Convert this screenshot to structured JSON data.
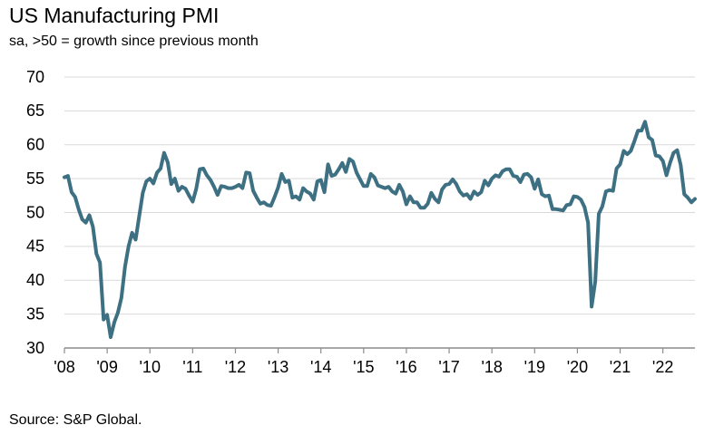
{
  "title": "US Manufacturing PMI",
  "subtitle": "sa, >50 = growth since previous month",
  "source": "Source: S&P Global.",
  "colors": {
    "line": "#3e7083",
    "grid": "#d9d9d9",
    "axis": "#8c8c8c"
  },
  "chart_data": {
    "type": "line",
    "title": "US Manufacturing PMI",
    "subtitle": "sa, >50 = growth since previous month",
    "ylim": [
      30,
      70
    ],
    "yticks": [
      30,
      35,
      40,
      45,
      50,
      55,
      60,
      65,
      70
    ],
    "xlim": [
      2008.0,
      2022.75
    ],
    "xticks": [
      {
        "label": "'08",
        "x": 2008
      },
      {
        "label": "'09",
        "x": 2009
      },
      {
        "label": "'10",
        "x": 2010
      },
      {
        "label": "'11",
        "x": 2011
      },
      {
        "label": "'12",
        "x": 2012
      },
      {
        "label": "'13",
        "x": 2013
      },
      {
        "label": "'14",
        "x": 2014
      },
      {
        "label": "'15",
        "x": 2015
      },
      {
        "label": "'16",
        "x": 2016
      },
      {
        "label": "'17",
        "x": 2017
      },
      {
        "label": "'18",
        "x": 2018
      },
      {
        "label": "'19",
        "x": 2019
      },
      {
        "label": "'20",
        "x": 2020
      },
      {
        "label": "'21",
        "x": 2021
      },
      {
        "label": "'22",
        "x": 2022
      }
    ],
    "grid": true,
    "series": [
      {
        "points": [
          [
            2008.0,
            55.2
          ],
          [
            2008.083,
            55.4
          ],
          [
            2008.167,
            53.0
          ],
          [
            2008.25,
            52.3
          ],
          [
            2008.333,
            50.5
          ],
          [
            2008.417,
            49.0
          ],
          [
            2008.5,
            48.5
          ],
          [
            2008.583,
            49.6
          ],
          [
            2008.667,
            47.9
          ],
          [
            2008.75,
            43.9
          ],
          [
            2008.833,
            42.6
          ],
          [
            2008.917,
            34.2
          ],
          [
            2009.0,
            34.9
          ],
          [
            2009.083,
            31.6
          ],
          [
            2009.167,
            33.8
          ],
          [
            2009.25,
            35.2
          ],
          [
            2009.333,
            37.4
          ],
          [
            2009.417,
            42.0
          ],
          [
            2009.5,
            45.0
          ],
          [
            2009.583,
            47.0
          ],
          [
            2009.667,
            46.0
          ],
          [
            2009.75,
            49.5
          ],
          [
            2009.833,
            52.9
          ],
          [
            2009.917,
            54.6
          ],
          [
            2010.0,
            55.0
          ],
          [
            2010.083,
            54.3
          ],
          [
            2010.167,
            55.9
          ],
          [
            2010.25,
            56.5
          ],
          [
            2010.333,
            58.8
          ],
          [
            2010.417,
            57.4
          ],
          [
            2010.5,
            54.2
          ],
          [
            2010.583,
            55.0
          ],
          [
            2010.667,
            53.2
          ],
          [
            2010.75,
            53.8
          ],
          [
            2010.833,
            53.5
          ],
          [
            2010.917,
            52.5
          ],
          [
            2011.0,
            51.6
          ],
          [
            2011.083,
            53.5
          ],
          [
            2011.167,
            56.4
          ],
          [
            2011.25,
            56.5
          ],
          [
            2011.333,
            55.5
          ],
          [
            2011.417,
            54.8
          ],
          [
            2011.5,
            53.8
          ],
          [
            2011.583,
            52.6
          ],
          [
            2011.667,
            53.9
          ],
          [
            2011.75,
            53.8
          ],
          [
            2011.833,
            53.6
          ],
          [
            2011.917,
            53.6
          ],
          [
            2012.0,
            53.8
          ],
          [
            2012.083,
            54.1
          ],
          [
            2012.167,
            53.6
          ],
          [
            2012.25,
            55.9
          ],
          [
            2012.333,
            55.8
          ],
          [
            2012.417,
            53.2
          ],
          [
            2012.5,
            52.2
          ],
          [
            2012.583,
            51.3
          ],
          [
            2012.667,
            51.5
          ],
          [
            2012.75,
            51.1
          ],
          [
            2012.833,
            51.0
          ],
          [
            2012.917,
            52.3
          ],
          [
            2013.0,
            53.7
          ],
          [
            2013.083,
            55.7
          ],
          [
            2013.167,
            54.5
          ],
          [
            2013.25,
            54.7
          ],
          [
            2013.333,
            52.2
          ],
          [
            2013.417,
            52.4
          ],
          [
            2013.5,
            51.9
          ],
          [
            2013.583,
            53.6
          ],
          [
            2013.667,
            53.1
          ],
          [
            2013.75,
            52.8
          ],
          [
            2013.833,
            51.9
          ],
          [
            2013.917,
            54.6
          ],
          [
            2014.0,
            54.8
          ],
          [
            2014.083,
            53.0
          ],
          [
            2014.167,
            57.1
          ],
          [
            2014.25,
            55.4
          ],
          [
            2014.333,
            55.6
          ],
          [
            2014.417,
            56.4
          ],
          [
            2014.5,
            57.3
          ],
          [
            2014.583,
            56.0
          ],
          [
            2014.667,
            57.9
          ],
          [
            2014.75,
            57.5
          ],
          [
            2014.833,
            55.9
          ],
          [
            2014.917,
            54.9
          ],
          [
            2015.0,
            53.9
          ],
          [
            2015.083,
            53.9
          ],
          [
            2015.167,
            55.7
          ],
          [
            2015.25,
            55.2
          ],
          [
            2015.333,
            54.0
          ],
          [
            2015.417,
            53.8
          ],
          [
            2015.5,
            53.6
          ],
          [
            2015.583,
            53.8
          ],
          [
            2015.667,
            53.1
          ],
          [
            2015.75,
            52.8
          ],
          [
            2015.833,
            54.1
          ],
          [
            2015.917,
            53.1
          ],
          [
            2016.0,
            51.2
          ],
          [
            2016.083,
            52.4
          ],
          [
            2016.167,
            51.5
          ],
          [
            2016.25,
            51.5
          ],
          [
            2016.333,
            50.7
          ],
          [
            2016.417,
            50.7
          ],
          [
            2016.5,
            51.3
          ],
          [
            2016.583,
            52.9
          ],
          [
            2016.667,
            52.0
          ],
          [
            2016.75,
            51.5
          ],
          [
            2016.833,
            53.4
          ],
          [
            2016.917,
            54.1
          ],
          [
            2017.0,
            54.2
          ],
          [
            2017.083,
            54.9
          ],
          [
            2017.167,
            54.2
          ],
          [
            2017.25,
            53.1
          ],
          [
            2017.333,
            52.5
          ],
          [
            2017.417,
            52.7
          ],
          [
            2017.5,
            52.0
          ],
          [
            2017.583,
            53.1
          ],
          [
            2017.667,
            52.6
          ],
          [
            2017.75,
            53.0
          ],
          [
            2017.833,
            54.7
          ],
          [
            2017.917,
            54.0
          ],
          [
            2018.0,
            55.0
          ],
          [
            2018.083,
            55.5
          ],
          [
            2018.167,
            55.3
          ],
          [
            2018.25,
            56.1
          ],
          [
            2018.333,
            56.4
          ],
          [
            2018.417,
            56.4
          ],
          [
            2018.5,
            55.4
          ],
          [
            2018.583,
            55.3
          ],
          [
            2018.667,
            54.5
          ],
          [
            2018.75,
            55.6
          ],
          [
            2018.833,
            55.7
          ],
          [
            2018.917,
            55.2
          ],
          [
            2019.0,
            53.5
          ],
          [
            2019.083,
            54.9
          ],
          [
            2019.167,
            52.7
          ],
          [
            2019.25,
            52.4
          ],
          [
            2019.333,
            52.5
          ],
          [
            2019.417,
            50.5
          ],
          [
            2019.5,
            50.5
          ],
          [
            2019.583,
            50.4
          ],
          [
            2019.667,
            50.3
          ],
          [
            2019.75,
            51.1
          ],
          [
            2019.833,
            51.2
          ],
          [
            2019.917,
            52.4
          ],
          [
            2020.0,
            52.3
          ],
          [
            2020.083,
            51.9
          ],
          [
            2020.167,
            50.8
          ],
          [
            2020.25,
            48.5
          ],
          [
            2020.333,
            36.1
          ],
          [
            2020.417,
            39.8
          ],
          [
            2020.5,
            49.8
          ],
          [
            2020.583,
            50.9
          ],
          [
            2020.667,
            53.1
          ],
          [
            2020.75,
            53.3
          ],
          [
            2020.833,
            53.2
          ],
          [
            2020.917,
            56.5
          ],
          [
            2021.0,
            57.1
          ],
          [
            2021.083,
            59.1
          ],
          [
            2021.167,
            58.6
          ],
          [
            2021.25,
            59.1
          ],
          [
            2021.333,
            60.5
          ],
          [
            2021.417,
            62.1
          ],
          [
            2021.5,
            62.1
          ],
          [
            2021.583,
            63.4
          ],
          [
            2021.667,
            61.1
          ],
          [
            2021.75,
            60.7
          ],
          [
            2021.833,
            58.4
          ],
          [
            2021.917,
            58.3
          ],
          [
            2022.0,
            57.6
          ],
          [
            2022.083,
            55.5
          ],
          [
            2022.167,
            57.3
          ],
          [
            2022.25,
            58.8
          ],
          [
            2022.333,
            59.2
          ],
          [
            2022.417,
            57.0
          ],
          [
            2022.5,
            52.7
          ],
          [
            2022.583,
            52.2
          ],
          [
            2022.667,
            51.5
          ],
          [
            2022.75,
            52.0
          ]
        ]
      }
    ]
  }
}
